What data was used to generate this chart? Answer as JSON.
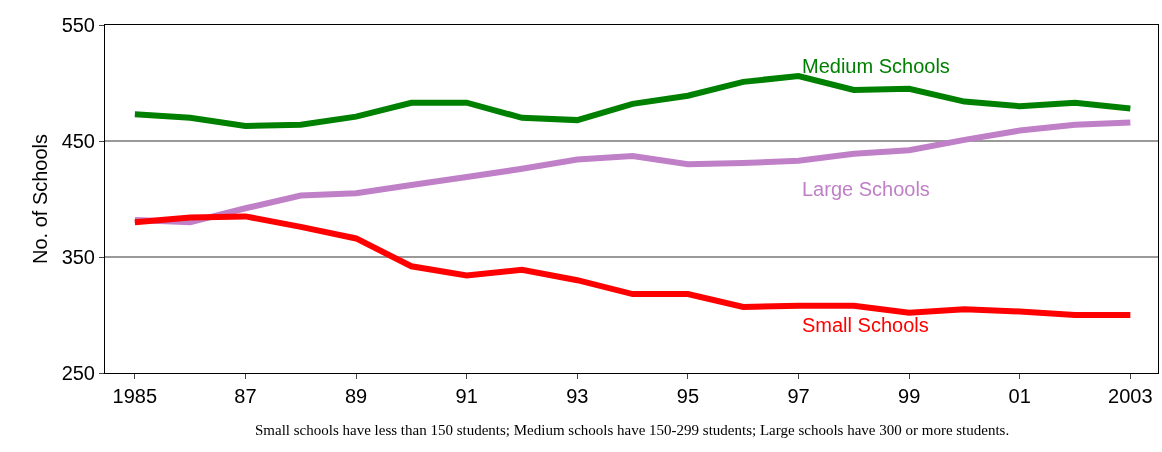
{
  "chart_data": {
    "type": "line",
    "ylabel": "No. of Schools",
    "x": [
      1985,
      1986,
      1987,
      1988,
      1989,
      1990,
      1991,
      1992,
      1993,
      1994,
      1995,
      1996,
      1997,
      1998,
      1999,
      2000,
      2001,
      2002,
      2003
    ],
    "series": [
      {
        "name": "Medium Schools",
        "color": "#008000",
        "values": [
          473,
          470,
          463,
          464,
          471,
          483,
          483,
          470,
          468,
          482,
          489,
          501,
          506,
          494,
          495,
          484,
          480,
          483,
          478
        ]
      },
      {
        "name": "Large Schools",
        "color": "#c080c8",
        "values": [
          382,
          380,
          392,
          403,
          405,
          412,
          419,
          426,
          434,
          437,
          430,
          431,
          433,
          439,
          442,
          451,
          459,
          464,
          466
        ]
      },
      {
        "name": "Small Schools",
        "color": "#ff0000",
        "values": [
          380,
          384,
          385,
          376,
          366,
          342,
          334,
          339,
          330,
          318,
          318,
          307,
          308,
          308,
          302,
          305,
          303,
          300,
          300
        ]
      }
    ],
    "xlim": [
      1984.46,
      2003.5
    ],
    "xticks": [
      1985,
      {
        "value": 1987,
        "label": "87"
      },
      {
        "value": 1989,
        "label": "89"
      },
      {
        "value": 1991,
        "label": "91"
      },
      {
        "value": 1993,
        "label": "93"
      },
      {
        "value": 1995,
        "label": "95"
      },
      {
        "value": 1997,
        "label": "97"
      },
      {
        "value": 1999,
        "label": "99"
      },
      {
        "value": 2001,
        "label": "01"
      },
      2003
    ],
    "ylim": [
      250,
      550
    ],
    "yticks": [
      250,
      350,
      450,
      550
    ],
    "grid": "y",
    "legend": false,
    "marker": "none",
    "line_style": "solid",
    "annotations": [
      "Small schools have less than 150 students; Medium schools have 150-299 students; Large schools have 300 or more students."
    ]
  }
}
